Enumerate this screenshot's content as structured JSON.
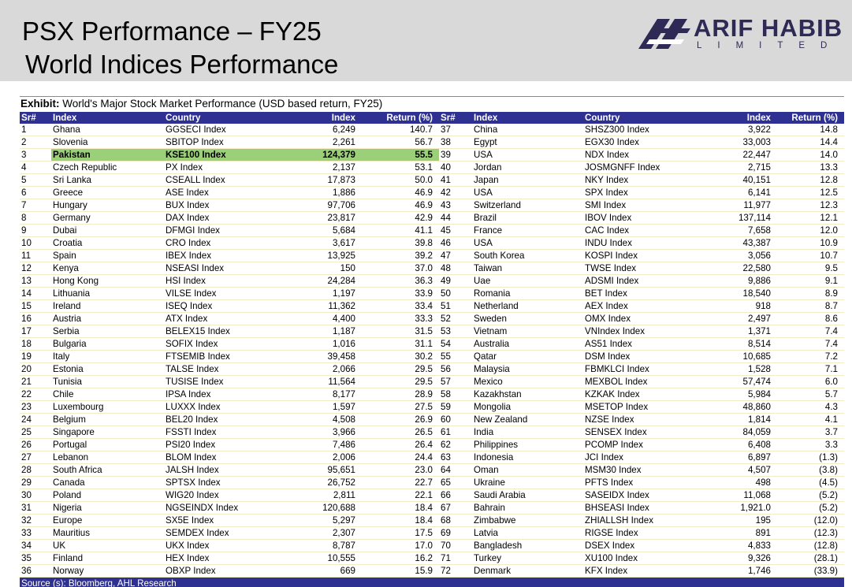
{
  "header": {
    "title_line1": "PSX Performance – FY25",
    "title_line2": "World Indices Performance",
    "logo_name": "ARIF HABIB",
    "logo_sub": "LIMITED"
  },
  "exhibit": {
    "label": "Exhibit:",
    "text": " World's Major Stock Market Performance (USD based return, FY25)"
  },
  "columns": [
    "Sr#",
    "Index",
    "Country",
    "Index",
    "Return (%)"
  ],
  "highlight_color": "#9bd079",
  "header_color": "#2e3192",
  "rows_left": [
    {
      "sr": "1",
      "country": "Ghana",
      "index": "GGSECI Index",
      "value": "6,249",
      "ret": "140.7"
    },
    {
      "sr": "2",
      "country": "Slovenia",
      "index": "SBITOP Index",
      "value": "2,261",
      "ret": "56.7"
    },
    {
      "sr": "3",
      "country": "Pakistan",
      "index": "KSE100 Index",
      "value": "124,379",
      "ret": "55.5",
      "highlight": true
    },
    {
      "sr": "4",
      "country": "Czech Republic",
      "index": "PX Index",
      "value": "2,137",
      "ret": "53.1"
    },
    {
      "sr": "5",
      "country": "Sri Lanka",
      "index": "CSEALL Index",
      "value": "17,873",
      "ret": "50.0"
    },
    {
      "sr": "6",
      "country": "Greece",
      "index": "ASE Index",
      "value": "1,886",
      "ret": "46.9"
    },
    {
      "sr": "7",
      "country": "Hungary",
      "index": "BUX Index",
      "value": "97,706",
      "ret": "46.9"
    },
    {
      "sr": "8",
      "country": "Germany",
      "index": "DAX Index",
      "value": "23,817",
      "ret": "42.9"
    },
    {
      "sr": "9",
      "country": "Dubai",
      "index": "DFMGI Index",
      "value": "5,684",
      "ret": "41.1"
    },
    {
      "sr": "10",
      "country": "Croatia",
      "index": "CRO Index",
      "value": "3,617",
      "ret": "39.8"
    },
    {
      "sr": "11",
      "country": "Spain",
      "index": "IBEX Index",
      "value": "13,925",
      "ret": "39.2"
    },
    {
      "sr": "12",
      "country": "Kenya",
      "index": "NSEASI Index",
      "value": "150",
      "ret": "37.0"
    },
    {
      "sr": "13",
      "country": "Hong Kong",
      "index": "HSI Index",
      "value": "24,284",
      "ret": "36.3"
    },
    {
      "sr": "14",
      "country": "Lithuania",
      "index": "VILSE Index",
      "value": "1,197",
      "ret": "33.9"
    },
    {
      "sr": "15",
      "country": "Ireland",
      "index": "ISEQ Index",
      "value": "11,362",
      "ret": "33.4"
    },
    {
      "sr": "16",
      "country": "Austria",
      "index": "ATX Index",
      "value": "4,400",
      "ret": "33.3"
    },
    {
      "sr": "17",
      "country": "Serbia",
      "index": "BELEX15 Index",
      "value": "1,187",
      "ret": "31.5"
    },
    {
      "sr": "18",
      "country": "Bulgaria",
      "index": "SOFIX Index",
      "value": "1,016",
      "ret": "31.1"
    },
    {
      "sr": "19",
      "country": "Italy",
      "index": "FTSEMIB Index",
      "value": "39,458",
      "ret": "30.2"
    },
    {
      "sr": "20",
      "country": "Estonia",
      "index": "TALSE Index",
      "value": "2,066",
      "ret": "29.5"
    },
    {
      "sr": "21",
      "country": "Tunisia",
      "index": "TUSISE Index",
      "value": "11,564",
      "ret": "29.5"
    },
    {
      "sr": "22",
      "country": "Chile",
      "index": "IPSA Index",
      "value": "8,177",
      "ret": "28.9"
    },
    {
      "sr": "23",
      "country": "Luxembourg",
      "index": "LUXXX Index",
      "value": "1,597",
      "ret": "27.5"
    },
    {
      "sr": "24",
      "country": "Belgium",
      "index": "BEL20 Index",
      "value": "4,508",
      "ret": "26.9"
    },
    {
      "sr": "25",
      "country": "Singapore",
      "index": "FSSTI Index",
      "value": "3,966",
      "ret": "26.5"
    },
    {
      "sr": "26",
      "country": "Portugal",
      "index": "PSI20 Index",
      "value": "7,486",
      "ret": "26.4"
    },
    {
      "sr": "27",
      "country": "Lebanon",
      "index": "BLOM Index",
      "value": "2,006",
      "ret": "24.4"
    },
    {
      "sr": "28",
      "country": "South Africa",
      "index": "JALSH Index",
      "value": "95,651",
      "ret": "23.0"
    },
    {
      "sr": "29",
      "country": "Canada",
      "index": "SPTSX Index",
      "value": "26,752",
      "ret": "22.7"
    },
    {
      "sr": "30",
      "country": "Poland",
      "index": "WIG20 Index",
      "value": "2,811",
      "ret": "22.1"
    },
    {
      "sr": "31",
      "country": "Nigeria",
      "index": "NGSEINDX Index",
      "value": "120,688",
      "ret": "18.4"
    },
    {
      "sr": "32",
      "country": "Europe",
      "index": "SX5E Index",
      "value": "5,297",
      "ret": "18.4"
    },
    {
      "sr": "33",
      "country": "Mauritius",
      "index": "SEMDEX Index",
      "value": "2,307",
      "ret": "17.5"
    },
    {
      "sr": "34",
      "country": "UK",
      "index": "UKX Index",
      "value": "8,787",
      "ret": "17.0"
    },
    {
      "sr": "35",
      "country": "Finland",
      "index": "HEX Index",
      "value": "10,555",
      "ret": "16.2"
    },
    {
      "sr": "36",
      "country": "Norway",
      "index": "OBXP Index",
      "value": "669",
      "ret": "15.9"
    }
  ],
  "rows_right": [
    {
      "sr": "37",
      "country": "China",
      "index": "SHSZ300 Index",
      "value": "3,922",
      "ret": "14.8"
    },
    {
      "sr": "38",
      "country": "Egypt",
      "index": "EGX30 Index",
      "value": "33,003",
      "ret": "14.4"
    },
    {
      "sr": "39",
      "country": "USA",
      "index": "NDX Index",
      "value": "22,447",
      "ret": "14.0"
    },
    {
      "sr": "40",
      "country": "Jordan",
      "index": "JOSMGNFF Index",
      "value": "2,715",
      "ret": "13.3"
    },
    {
      "sr": "41",
      "country": "Japan",
      "index": "NKY Index",
      "value": "40,151",
      "ret": "12.8"
    },
    {
      "sr": "42",
      "country": "USA",
      "index": "SPX Index",
      "value": "6,141",
      "ret": "12.5"
    },
    {
      "sr": "43",
      "country": "Switzerland",
      "index": "SMI Index",
      "value": "11,977",
      "ret": "12.3"
    },
    {
      "sr": "44",
      "country": "Brazil",
      "index": "IBOV Index",
      "value": "137,114",
      "ret": "12.1"
    },
    {
      "sr": "45",
      "country": "France",
      "index": "CAC Index",
      "value": "7,658",
      "ret": "12.0"
    },
    {
      "sr": "46",
      "country": "USA",
      "index": "INDU Index",
      "value": "43,387",
      "ret": "10.9"
    },
    {
      "sr": "47",
      "country": "South Korea",
      "index": "KOSPI Index",
      "value": "3,056",
      "ret": "10.7"
    },
    {
      "sr": "48",
      "country": "Taiwan",
      "index": "TWSE Index",
      "value": "22,580",
      "ret": "9.5"
    },
    {
      "sr": "49",
      "country": "Uae",
      "index": "ADSMI Index",
      "value": "9,886",
      "ret": "9.1"
    },
    {
      "sr": "50",
      "country": "Romania",
      "index": "BET Index",
      "value": "18,540",
      "ret": "8.9"
    },
    {
      "sr": "51",
      "country": "Netherland",
      "index": "AEX Index",
      "value": "918",
      "ret": "8.7"
    },
    {
      "sr": "52",
      "country": "Sweden",
      "index": "OMX Index",
      "value": "2,497",
      "ret": "8.6"
    },
    {
      "sr": "53",
      "country": "Vietnam",
      "index": "VNIndex Index",
      "value": "1,371",
      "ret": "7.4"
    },
    {
      "sr": "54",
      "country": "Australia",
      "index": "AS51 Index",
      "value": "8,514",
      "ret": "7.4"
    },
    {
      "sr": "55",
      "country": "Qatar",
      "index": "DSM Index",
      "value": "10,685",
      "ret": "7.2"
    },
    {
      "sr": "56",
      "country": "Malaysia",
      "index": "FBMKLCI Index",
      "value": "1,528",
      "ret": "7.1"
    },
    {
      "sr": "57",
      "country": "Mexico",
      "index": "MEXBOL Index",
      "value": "57,474",
      "ret": "6.0"
    },
    {
      "sr": "58",
      "country": "Kazakhstan",
      "index": "KZKAK Index",
      "value": "5,984",
      "ret": "5.7"
    },
    {
      "sr": "59",
      "country": "Mongolia",
      "index": "MSETOP Index",
      "value": "48,860",
      "ret": "4.3"
    },
    {
      "sr": "60",
      "country": "New Zealand",
      "index": "NZSE Index",
      "value": "1,814",
      "ret": "4.1"
    },
    {
      "sr": "61",
      "country": "India",
      "index": "SENSEX Index",
      "value": "84,059",
      "ret": "3.7"
    },
    {
      "sr": "62",
      "country": "Philippines",
      "index": "PCOMP Index",
      "value": "6,408",
      "ret": "3.3"
    },
    {
      "sr": "63",
      "country": "Indonesia",
      "index": "JCI Index",
      "value": "6,897",
      "ret": "(1.3)"
    },
    {
      "sr": "64",
      "country": "Oman",
      "index": "MSM30 Index",
      "value": "4,507",
      "ret": "(3.8)"
    },
    {
      "sr": "65",
      "country": "Ukraine",
      "index": "PFTS Index",
      "value": "498",
      "ret": "(4.5)"
    },
    {
      "sr": "66",
      "country": "Saudi Arabia",
      "index": "SASEIDX Index",
      "value": "11,068",
      "ret": "(5.2)"
    },
    {
      "sr": "67",
      "country": "Bahrain",
      "index": "BHSEASI Index",
      "value": "1,921.0",
      "ret": "(5.2)"
    },
    {
      "sr": "68",
      "country": "Zimbabwe",
      "index": "ZHIALLSH Index",
      "value": "195",
      "ret": "(12.0)"
    },
    {
      "sr": "69",
      "country": "Latvia",
      "index": "RIGSE Index",
      "value": "891",
      "ret": "(12.3)"
    },
    {
      "sr": "70",
      "country": "Bangladesh",
      "index": "DSEX Index",
      "value": "4,833",
      "ret": "(12.8)"
    },
    {
      "sr": "71",
      "country": "Turkey",
      "index": "XU100 Index",
      "value": "9,326",
      "ret": "(28.1)"
    },
    {
      "sr": "72",
      "country": "Denmark",
      "index": "KFX Index",
      "value": "1,746",
      "ret": "(33.9)"
    }
  ],
  "source": "Source (s): Bloomberg, AHL Research"
}
